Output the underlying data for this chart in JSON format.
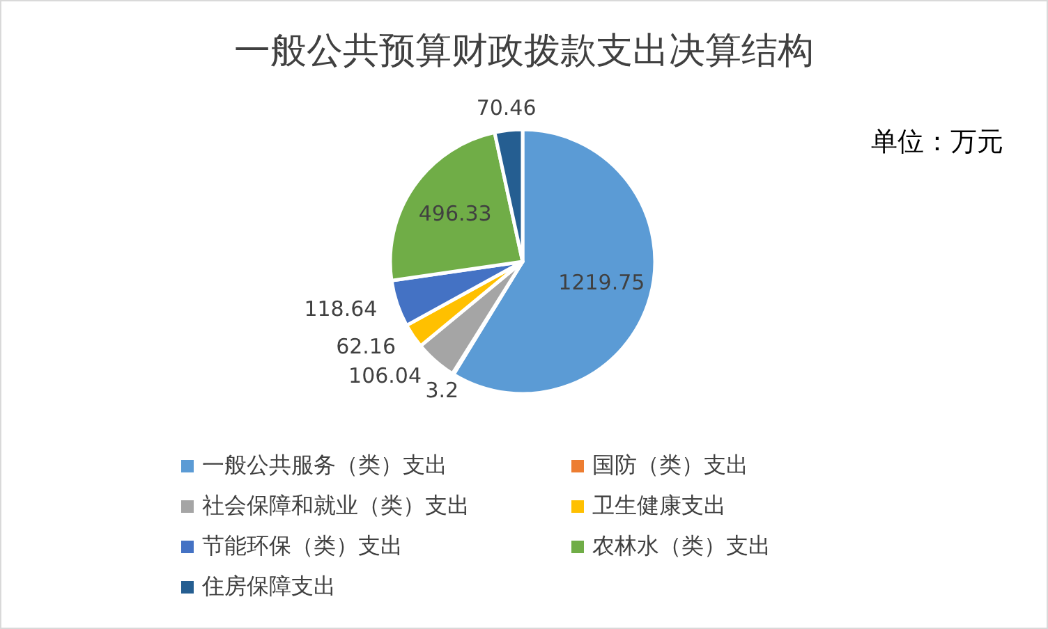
{
  "chart_data": {
    "type": "pie",
    "title": "一般公共预算财政拨款支出决算结构",
    "annotations": [
      "单位：万元"
    ],
    "categories": [
      "一般公共服务（类）支出",
      "国防（类）支出",
      "社会保障和就业（类）支出",
      "卫生健康支出",
      "节能环保（类）支出",
      "农林水（类）支出",
      "住房保障支出"
    ],
    "values": [
      1219.75,
      3.2,
      106.04,
      62.16,
      118.64,
      496.33,
      70.46
    ],
    "colors": [
      "#5b9bd5",
      "#ed7d31",
      "#a5a5a5",
      "#ffc000",
      "#4472c4",
      "#70ad47",
      "#255e91"
    ],
    "data_labels": true,
    "legend": "bottom"
  }
}
